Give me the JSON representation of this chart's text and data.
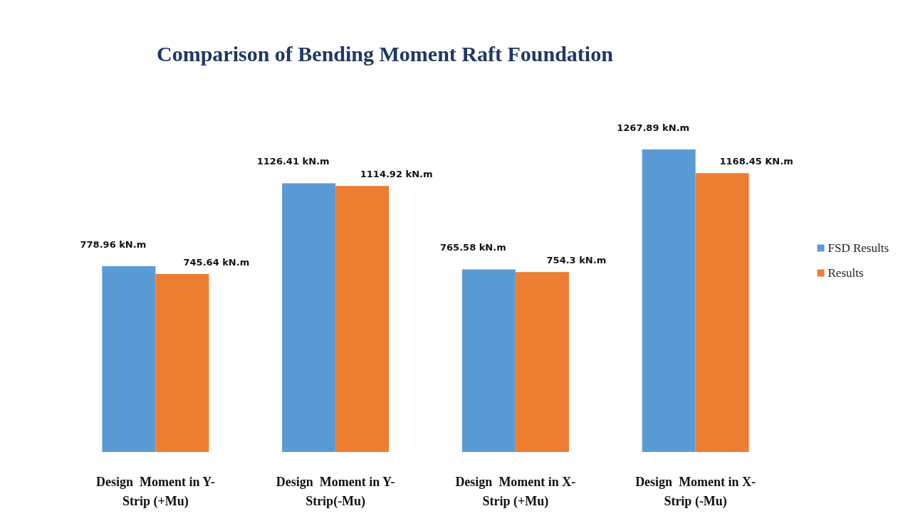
{
  "chart_data": {
    "type": "bar",
    "title": "Comparison of Bending Moment Raft Foundation",
    "categories": [
      "Design  Moment in Y-\nStrip (+Mu)",
      "Design  Moment in Y-\nStrip(-Mu)",
      "Design  Moment in X-\nStrip (+Mu)",
      "Design  Moment in X-\nStrip (-Mu)"
    ],
    "series": [
      {
        "name": "FSD Results",
        "color": "#5b9bd5",
        "values": [
          778.96,
          1126.41,
          765.58,
          1267.89
        ],
        "value_labels": [
          "778.96 kN.m",
          "1126.41 kN.m",
          "765.58 kN.m",
          "1267.89 kN.m"
        ]
      },
      {
        "name": "Results",
        "color": "#ed7d31",
        "values": [
          745.64,
          1114.92,
          754.3,
          1168.45
        ],
        "value_labels": [
          "745.64 kN.m",
          "1114.92 kN.m",
          "754.3 kN.m",
          "1168.45 KN.m"
        ]
      }
    ],
    "legend": "right"
  }
}
